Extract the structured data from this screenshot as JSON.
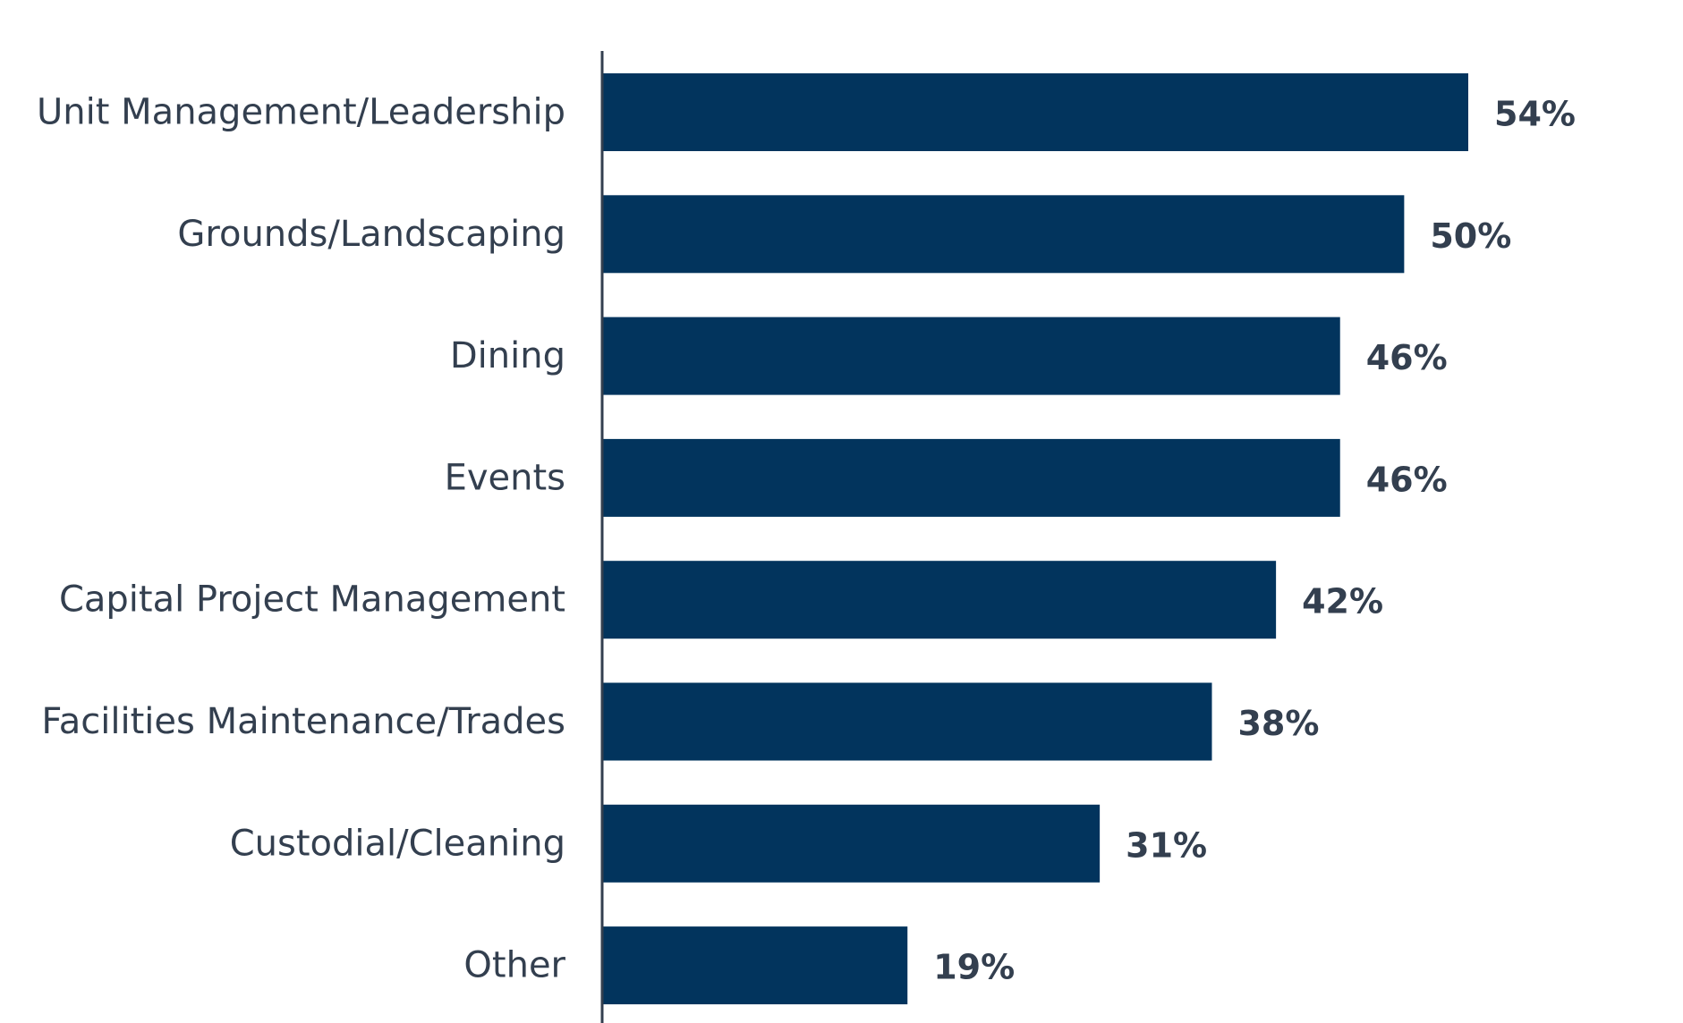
{
  "chart_data": {
    "type": "bar",
    "orientation": "horizontal",
    "categories": [
      "Unit Management/Leadership",
      "Grounds/Landscaping",
      "Dining",
      "Events",
      "Capital Project Management",
      "Facilities Maintenance/Trades",
      "Custodial/Cleaning",
      "Other"
    ],
    "values": [
      54,
      50,
      46,
      46,
      42,
      38,
      31,
      19
    ],
    "data_labels": [
      "54%",
      "50%",
      "46%",
      "46%",
      "42%",
      "38%",
      "31%",
      "19%"
    ],
    "value_unit": "%",
    "xlim": [
      0,
      54
    ],
    "title": "",
    "xlabel": "",
    "ylabel": "",
    "grid": false,
    "legend": "none",
    "colors": {
      "bar": "#02345d",
      "axis": "#333f4f",
      "text": "#333f4f"
    }
  }
}
